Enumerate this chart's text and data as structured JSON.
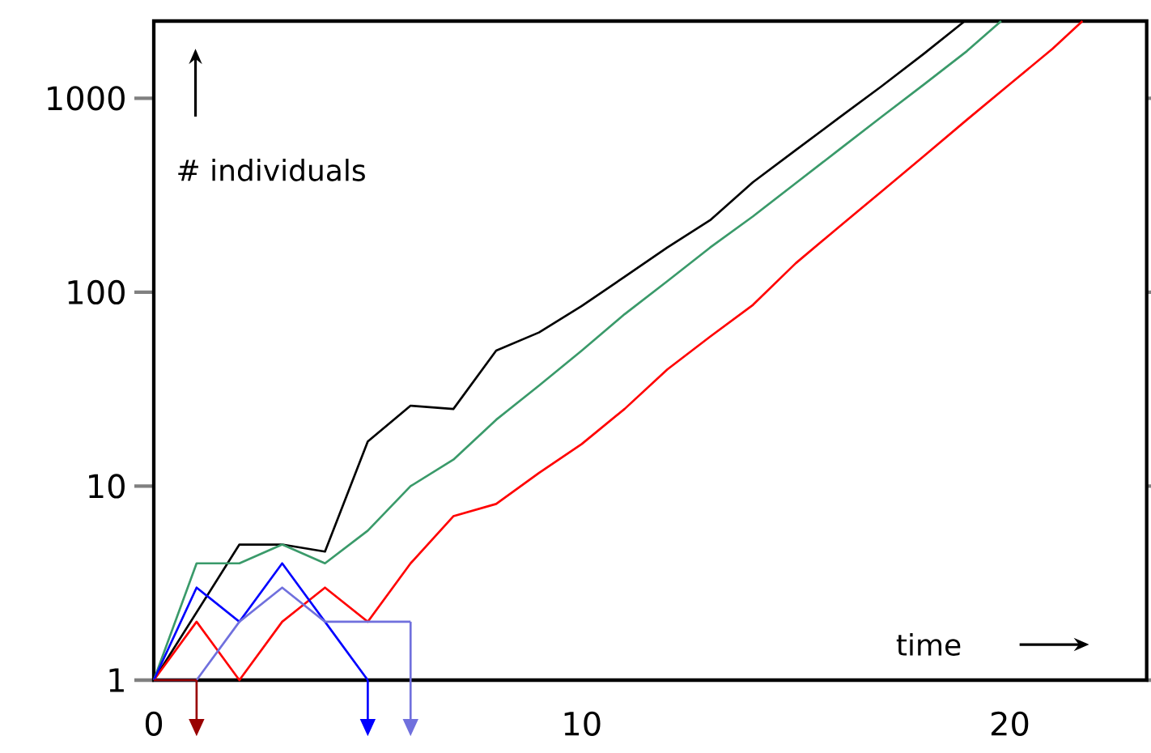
{
  "chart_data": {
    "type": "line",
    "xlabel": "time",
    "ylabel": "# individuals",
    "log": "y",
    "xlim": [
      0,
      23.2
    ],
    "ylim": [
      1,
      2500
    ],
    "xticks": [
      0,
      10,
      20
    ],
    "yticks": [
      1,
      10,
      100,
      1000
    ],
    "line_style": "solid",
    "marker": "none",
    "series": [
      {
        "color": "#000000",
        "x": [
          0,
          2,
          3,
          4,
          5,
          6,
          7,
          8,
          9,
          10,
          11,
          12,
          13,
          14,
          15,
          16,
          17,
          18,
          18.95
        ],
        "values": [
          1,
          5,
          5,
          4.6,
          17,
          26,
          25,
          50,
          62,
          85,
          120,
          170,
          235,
          369,
          540,
          790,
          1150,
          1700,
          2500
        ]
      },
      {
        "color": "#3a9a6a",
        "x": [
          0,
          1,
          2,
          3,
          4,
          5,
          6,
          7,
          8,
          9,
          10,
          11,
          12,
          13,
          14,
          15,
          16,
          17,
          18,
          19,
          19.8
        ],
        "values": [
          1,
          4,
          4,
          5,
          4,
          5.9,
          10,
          13.7,
          22,
          33,
          50,
          77,
          114,
          170,
          246,
          365,
          540,
          800,
          1180,
          1750,
          2500
        ]
      },
      {
        "color": "#ff0000",
        "x": [
          0,
          1,
          2,
          3,
          4,
          5,
          6,
          7,
          8,
          9,
          10,
          11,
          12,
          13,
          14,
          15,
          16,
          17,
          18,
          19,
          20,
          21,
          21.7
        ],
        "values": [
          1,
          2,
          1,
          2,
          3,
          2,
          4,
          7,
          8.1,
          11.7,
          16.5,
          25,
          40,
          59,
          86,
          141,
          216,
          330,
          505,
          775,
          1180,
          1800,
          2500
        ]
      },
      {
        "color": "#0000ff",
        "x": [
          0,
          1,
          2,
          3,
          4,
          5
        ],
        "values": [
          1,
          3,
          2,
          4,
          2,
          1
        ]
      },
      {
        "color": "#7070dd",
        "x": [
          0,
          1,
          2,
          3,
          4,
          5,
          6
        ],
        "values": [
          1,
          1,
          2,
          3,
          2,
          2,
          2
        ]
      },
      {
        "color": "#990000",
        "x": [
          0,
          1
        ],
        "values": [
          1,
          1
        ]
      }
    ]
  }
}
